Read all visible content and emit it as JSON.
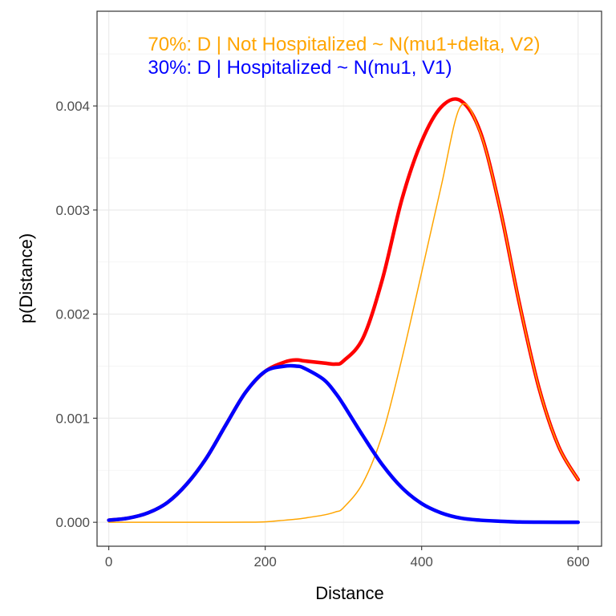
{
  "chart_data": {
    "type": "line",
    "title": "",
    "xlabel": "Distance",
    "ylabel": "p(Distance)",
    "xlim": [
      -15,
      630
    ],
    "ylim": [
      -0.00023,
      0.00491
    ],
    "x_ticks": [
      0,
      200,
      400,
      600
    ],
    "x_tick_labels": [
      "0",
      "200",
      "400",
      "600"
    ],
    "y_ticks": [
      0,
      0.001,
      0.002,
      0.003,
      0.004
    ],
    "y_tick_labels": [
      "0.000",
      "0.001",
      "0.002",
      "0.003",
      "0.004"
    ],
    "grid": true,
    "legend": "none",
    "annotations": [
      {
        "text": "70%: D | Not Hospitalized ~ N(mu1+delta, V2)",
        "color": "#ffa500",
        "anchor_x": 50,
        "anchor_y": 0.0046
      },
      {
        "text": "30%: D | Hospitalized ~ N(mu1, V1)",
        "color": "#0000ff",
        "anchor_x": 50,
        "anchor_y": 0.00438
      }
    ],
    "series": [
      {
        "color": "#ff0000",
        "line_width": 4.5,
        "x": [
          0,
          25,
          50,
          75,
          100,
          125,
          150,
          175,
          200,
          225,
          240,
          250,
          275,
          290,
          300,
          325,
          350,
          375,
          400,
          425,
          450,
          475,
          500,
          525,
          550,
          575,
          600
        ],
        "y": [
          2e-05,
          4e-05,
          9e-05,
          0.00019,
          0.00037,
          0.00062,
          0.00094,
          0.00125,
          0.00145,
          0.00154,
          0.00156,
          0.00155,
          0.00153,
          0.00152,
          0.00155,
          0.00177,
          0.00234,
          0.00311,
          0.00366,
          0.00399,
          0.00405,
          0.00375,
          0.00302,
          0.0021,
          0.00129,
          0.00073,
          0.00041
        ]
      },
      {
        "color": "#ffa500",
        "line_width": 1.5,
        "x": [
          0,
          25,
          50,
          75,
          100,
          125,
          150,
          175,
          200,
          225,
          240,
          250,
          275,
          290,
          300,
          325,
          350,
          375,
          400,
          425,
          450,
          475,
          500,
          525,
          550,
          575,
          600
        ],
        "y": [
          0,
          0,
          0,
          0,
          0,
          0,
          0,
          1e-06,
          4e-06,
          2e-05,
          3e-05,
          4e-05,
          7e-05,
          0.0001,
          0.00014,
          0.00038,
          0.00085,
          0.00158,
          0.0024,
          0.00323,
          0.004,
          0.00374,
          0.00302,
          0.0021,
          0.00129,
          0.00073,
          0.00041
        ]
      },
      {
        "color": "#0000ff",
        "line_width": 4.5,
        "x": [
          0,
          25,
          50,
          75,
          100,
          125,
          150,
          175,
          200,
          225,
          240,
          250,
          275,
          290,
          300,
          325,
          350,
          375,
          400,
          425,
          450,
          475,
          500,
          525,
          550,
          575,
          600
        ],
        "y": [
          2e-05,
          4e-05,
          9e-05,
          0.00019,
          0.00037,
          0.00062,
          0.00094,
          0.00125,
          0.00145,
          0.0015,
          0.0015,
          0.00148,
          0.00137,
          0.00124,
          0.00113,
          0.00083,
          0.00055,
          0.00033,
          0.00018,
          9e-05,
          4e-05,
          2e-05,
          1e-05,
          3e-06,
          1e-06,
          0,
          0
        ]
      }
    ]
  }
}
